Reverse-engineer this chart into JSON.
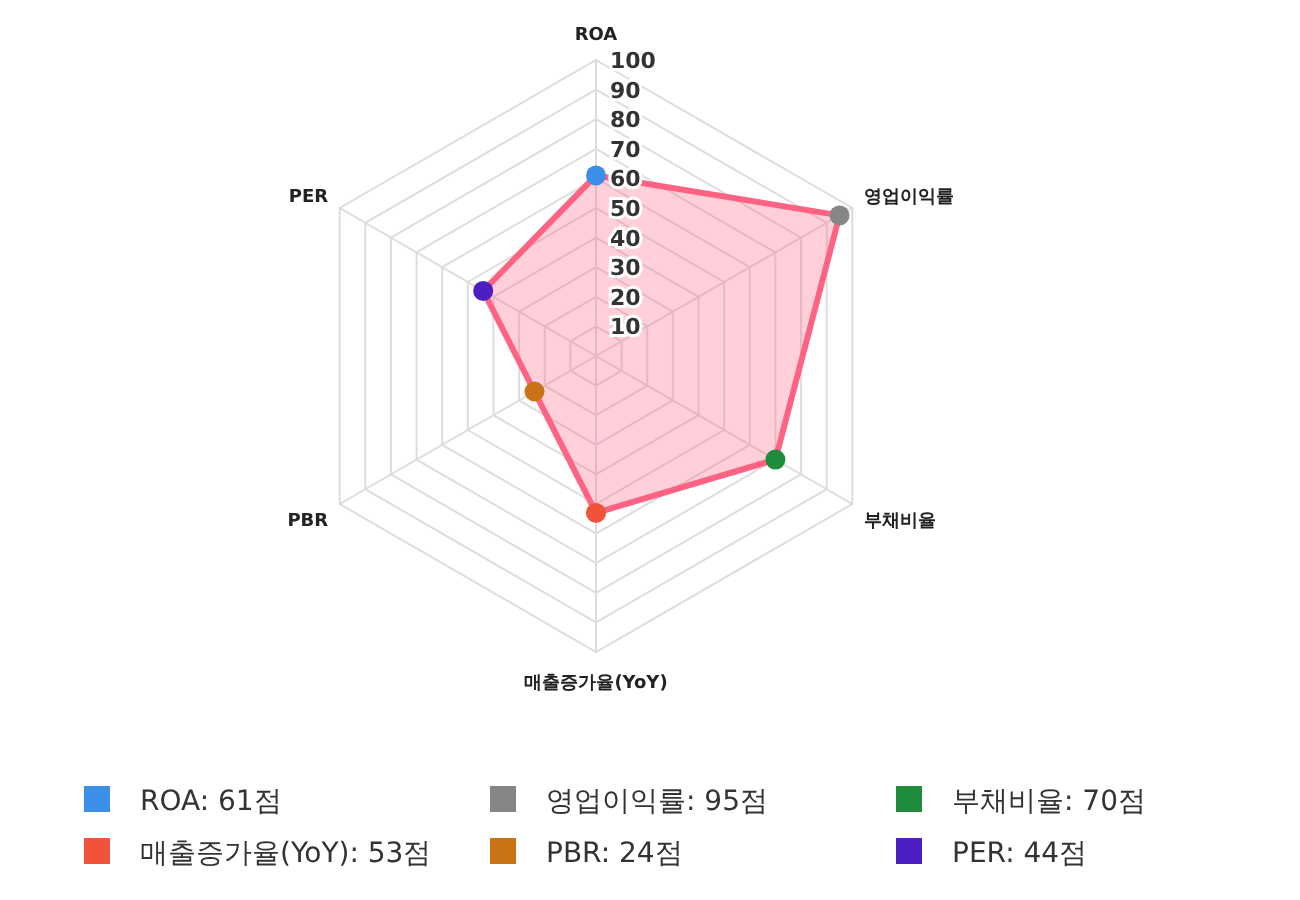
{
  "chart_data": {
    "type": "radar",
    "categories": [
      "ROA",
      "영업이익률",
      "부채비율",
      "매출증가율(YoY)",
      "PBR",
      "PER"
    ],
    "series": [
      {
        "color": "#ff6384",
        "colors": [
          "#3b8fe8",
          "#868686",
          "#1e8c3a",
          "#f0523a",
          "#c87416",
          "#4b1fc2"
        ],
        "values": [
          61,
          95,
          70,
          53,
          24,
          44
        ]
      }
    ],
    "annotations": [
      "ROA: 61점",
      "영업이익률: 95점",
      "부채비율: 70점",
      "매출증가율(YoY): 53점",
      "PBR: 24점",
      "PER: 44점"
    ],
    "ylim": [
      0,
      100
    ],
    "yticks": [
      10,
      20,
      30,
      40,
      50,
      60,
      70,
      80,
      90,
      100
    ],
    "grid": true,
    "marker": "circle"
  }
}
